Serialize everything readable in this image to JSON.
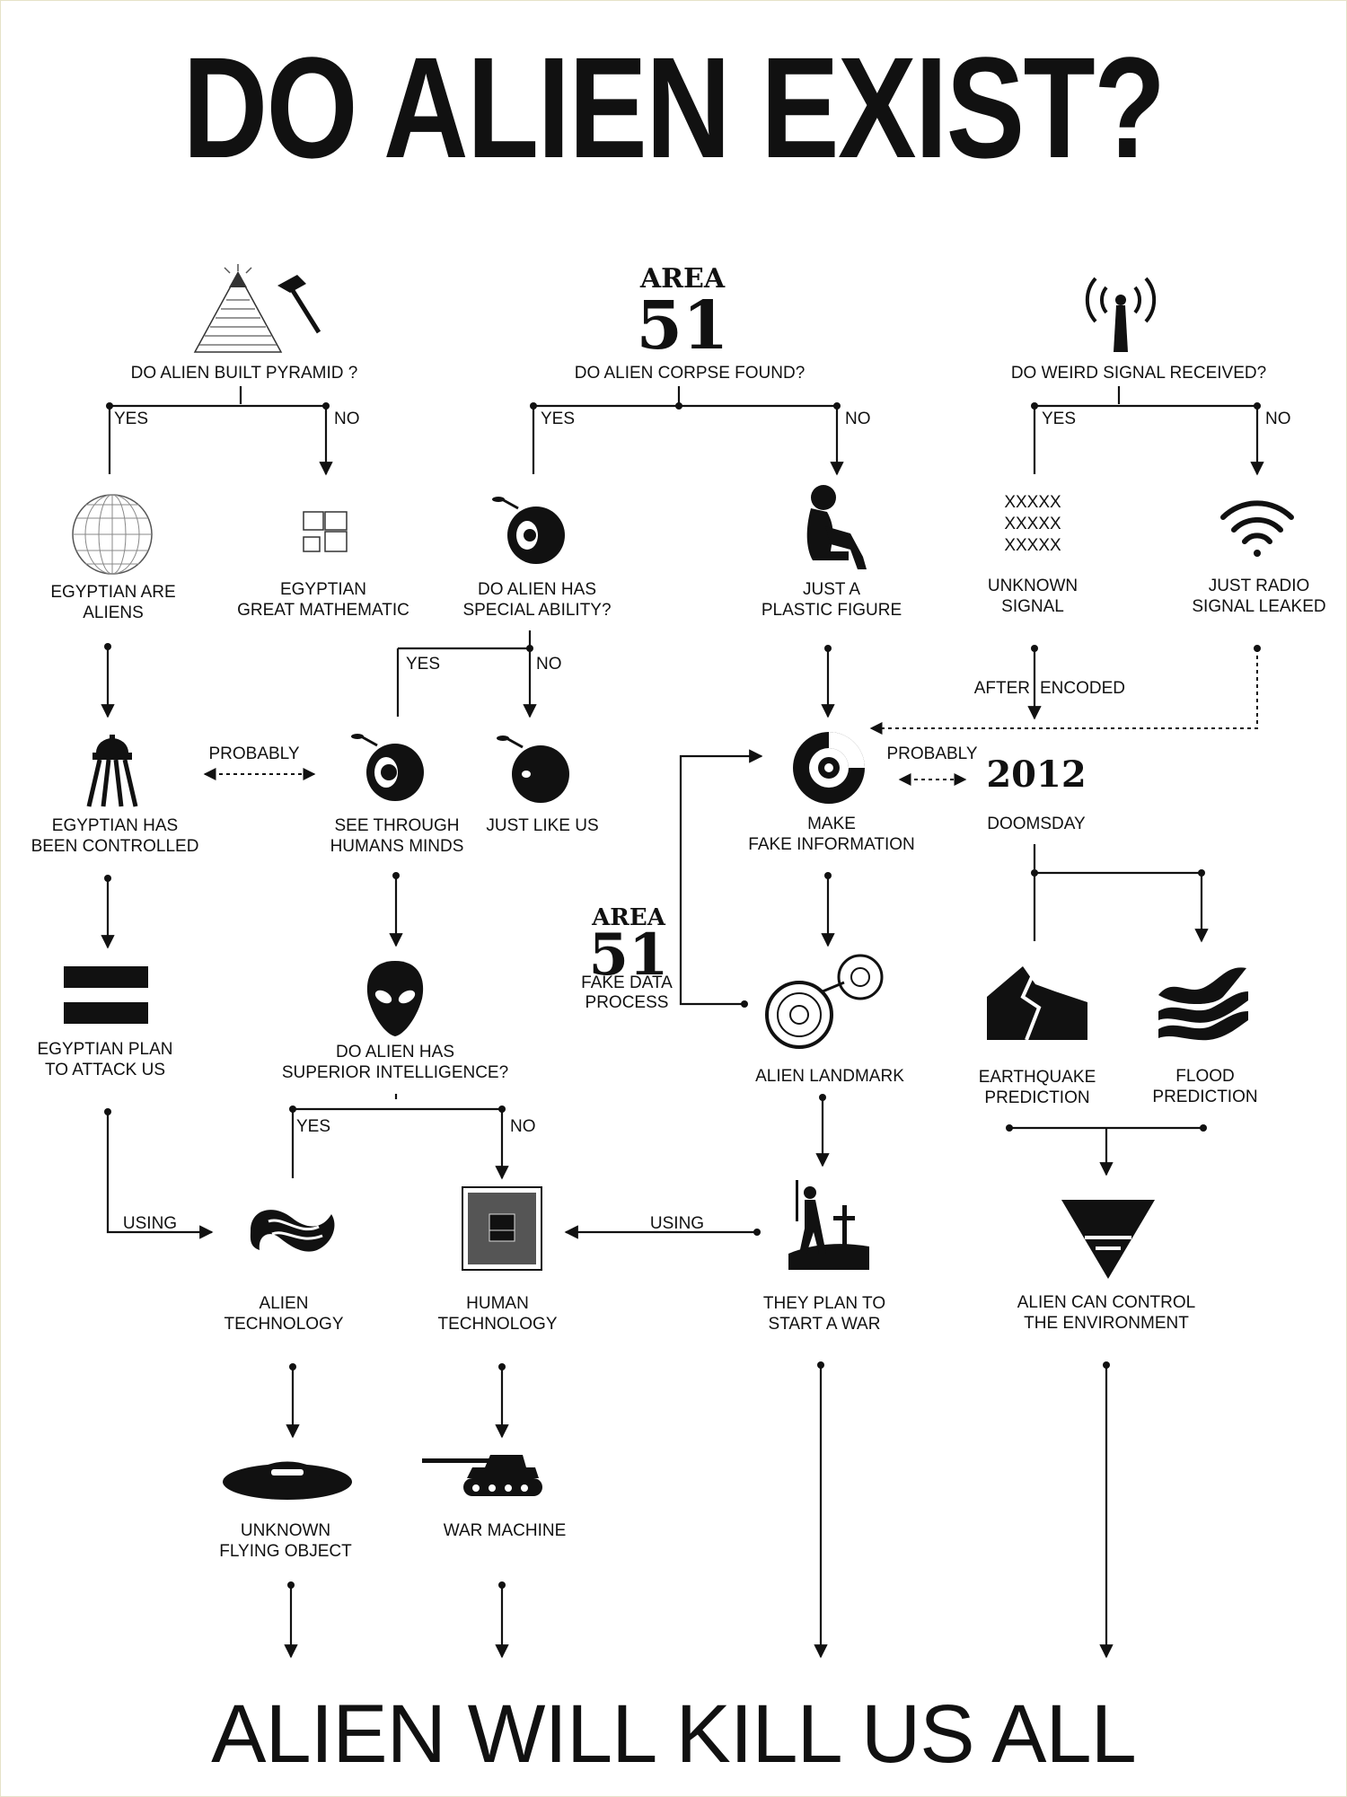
{
  "title": "DO ALIEN EXIST?",
  "footer": "ALIEN WILL KILL US ALL",
  "questions": {
    "pyramid": "DO ALIEN BUILT PYRAMID ?",
    "corpse": "DO ALIEN CORPSE FOUND?",
    "signal": "DO WEIRD SIGNAL RECEIVED?",
    "special_1": "DO ALIEN HAS",
    "special_2": "SPECIAL ABILITY?",
    "intel_1": "DO ALIEN HAS",
    "intel_2": "SUPERIOR INTELLIGENCE?"
  },
  "branches": {
    "yes": "YES",
    "no": "NO"
  },
  "nodes": {
    "egyptian_aliens_1": "EGYPTIAN ARE",
    "egyptian_aliens_2": "ALIENS",
    "great_math_1": "EGYPTIAN",
    "great_math_2": "GREAT MATHEMATIC",
    "plastic_1": "JUST A",
    "plastic_2": "PLASTIC FIGURE",
    "unknown_signal_1": "UNKNOWN",
    "unknown_signal_2": "SIGNAL",
    "radio_1": "JUST RADIO",
    "radio_2": "SIGNAL LEAKED",
    "controlled_1": "EGYPTIAN HAS",
    "controlled_2": "BEEN CONTROLLED",
    "see_through_1": "SEE THROUGH",
    "see_through_2": "HUMANS MINDS",
    "just_like_us": "JUST LIKE US",
    "fake_info_1": "MAKE",
    "fake_info_2": "FAKE INFORMATION",
    "doomsday": "DOOMSDAY",
    "year": "2012",
    "plan_attack_1": "EGYPTIAN PLAN",
    "plan_attack_2": "TO ATTACK US",
    "landmark": "ALIEN LANDMARK",
    "earthquake_1": "EARTHQUAKE",
    "earthquake_2": "PREDICTION",
    "flood_1": "FLOOD",
    "flood_2": "PREDICTION",
    "alien_tech_1": "ALIEN",
    "alien_tech_2": "TECHNOLOGY",
    "human_tech_1": "HUMAN",
    "human_tech_2": "TECHNOLOGY",
    "war_plan_1": "THEY PLAN TO",
    "war_plan_2": "START A WAR",
    "control_env_1": "ALIEN CAN CONTROL",
    "control_env_2": "THE ENVIRONMENT",
    "ufo_1": "UNKNOWN",
    "ufo_2": "FLYING OBJECT",
    "war_machine": "WAR MACHINE"
  },
  "connectors": {
    "after": "AFTER",
    "encoded": "ENCODED",
    "probably": "PROBABLY",
    "using": "USING",
    "fake_data_1": "FAKE DATA",
    "fake_data_2": "PROCESS"
  },
  "area51": {
    "top": "AREA",
    "bottom": "51"
  },
  "signal_glyph": "XXXXX",
  "icons": [
    "pyramid-icon",
    "hammer-icon",
    "area51-icon",
    "antenna-icon",
    "globe-icon",
    "squares-icon",
    "alien-eye-icon",
    "sitting-figure-icon",
    "wifi-icon",
    "probe-icon",
    "equal-icon",
    "alien-head-icon",
    "disc-icon",
    "rings-icon",
    "earthquake-icon",
    "flood-icon",
    "wave-icon",
    "chip-icon",
    "soldier-icon",
    "triangle-icon",
    "ufo-icon",
    "tank-icon"
  ]
}
